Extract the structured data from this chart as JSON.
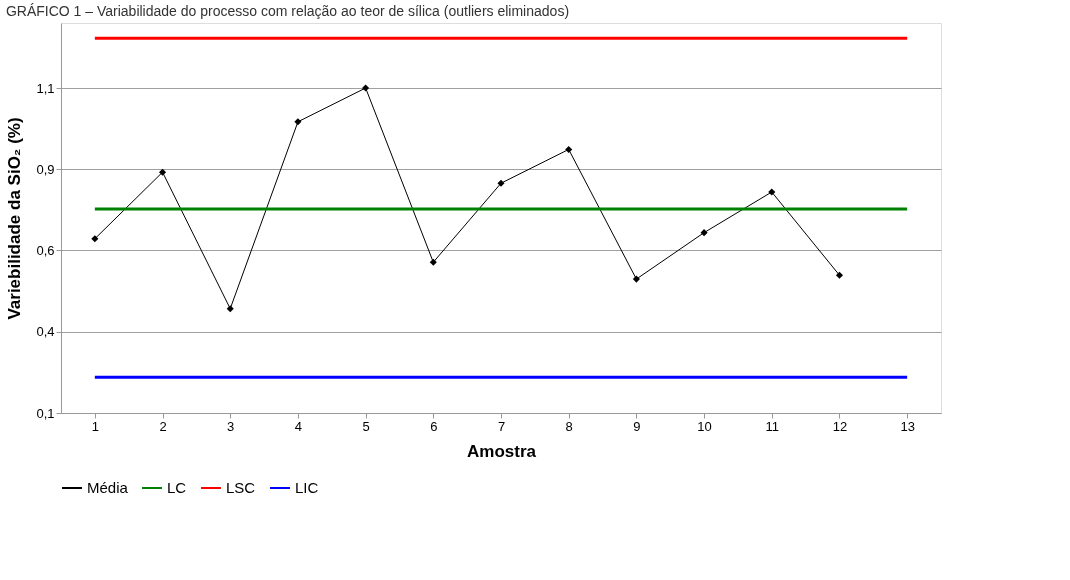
{
  "chart_data": {
    "type": "line",
    "title": "GRÁFICO 1 – Variabilidade do processo com relação ao teor de sílica (outliers eliminados)",
    "xlabel": "Amostra",
    "ylabel": "Variebilidade da SiO₂ (%)",
    "x": [
      1,
      2,
      3,
      4,
      5,
      6,
      7,
      8,
      9,
      10,
      11,
      12,
      13
    ],
    "xlim": [
      0.5,
      13.5
    ],
    "xticks": [
      1,
      2,
      3,
      4,
      5,
      6,
      7,
      8,
      9,
      10,
      11,
      12,
      13
    ],
    "series": [
      {
        "name": "Média",
        "color": "#000000",
        "marker": "diamond",
        "values": [
          0.636,
          0.841,
          0.421,
          0.996,
          1.1,
          0.564,
          0.807,
          0.911,
          0.512,
          0.655,
          0.78,
          0.524,
          null
        ]
      },
      {
        "name": "LC",
        "color": "#008000",
        "marker": "none",
        "values": [
          0.728,
          0.728,
          0.728,
          0.728,
          0.728,
          0.728,
          0.728,
          0.728,
          0.728,
          0.728,
          0.728,
          0.728,
          0.728
        ]
      },
      {
        "name": "LSC",
        "color": "#ff0000",
        "marker": "none",
        "values": [
          1.253,
          1.253,
          1.253,
          1.253,
          1.253,
          1.253,
          1.253,
          1.253,
          1.253,
          1.253,
          1.253,
          1.253,
          1.253
        ]
      },
      {
        "name": "LIC",
        "color": "#0000ff",
        "marker": "none",
        "values": [
          0.21,
          0.21,
          0.21,
          0.21,
          0.21,
          0.21,
          0.21,
          0.21,
          0.21,
          0.21,
          0.21,
          0.21,
          0.21
        ]
      }
    ],
    "ylim": [
      0.1,
      1.3
    ],
    "yticks": [
      {
        "value": 0.1,
        "label": "0,1"
      },
      {
        "value": 0.35,
        "label": "0,4"
      },
      {
        "value": 0.6,
        "label": "0,6"
      },
      {
        "value": 0.85,
        "label": "0,9"
      },
      {
        "value": 1.1,
        "label": "1,1"
      }
    ],
    "grid": "y",
    "legend": "bottom"
  }
}
